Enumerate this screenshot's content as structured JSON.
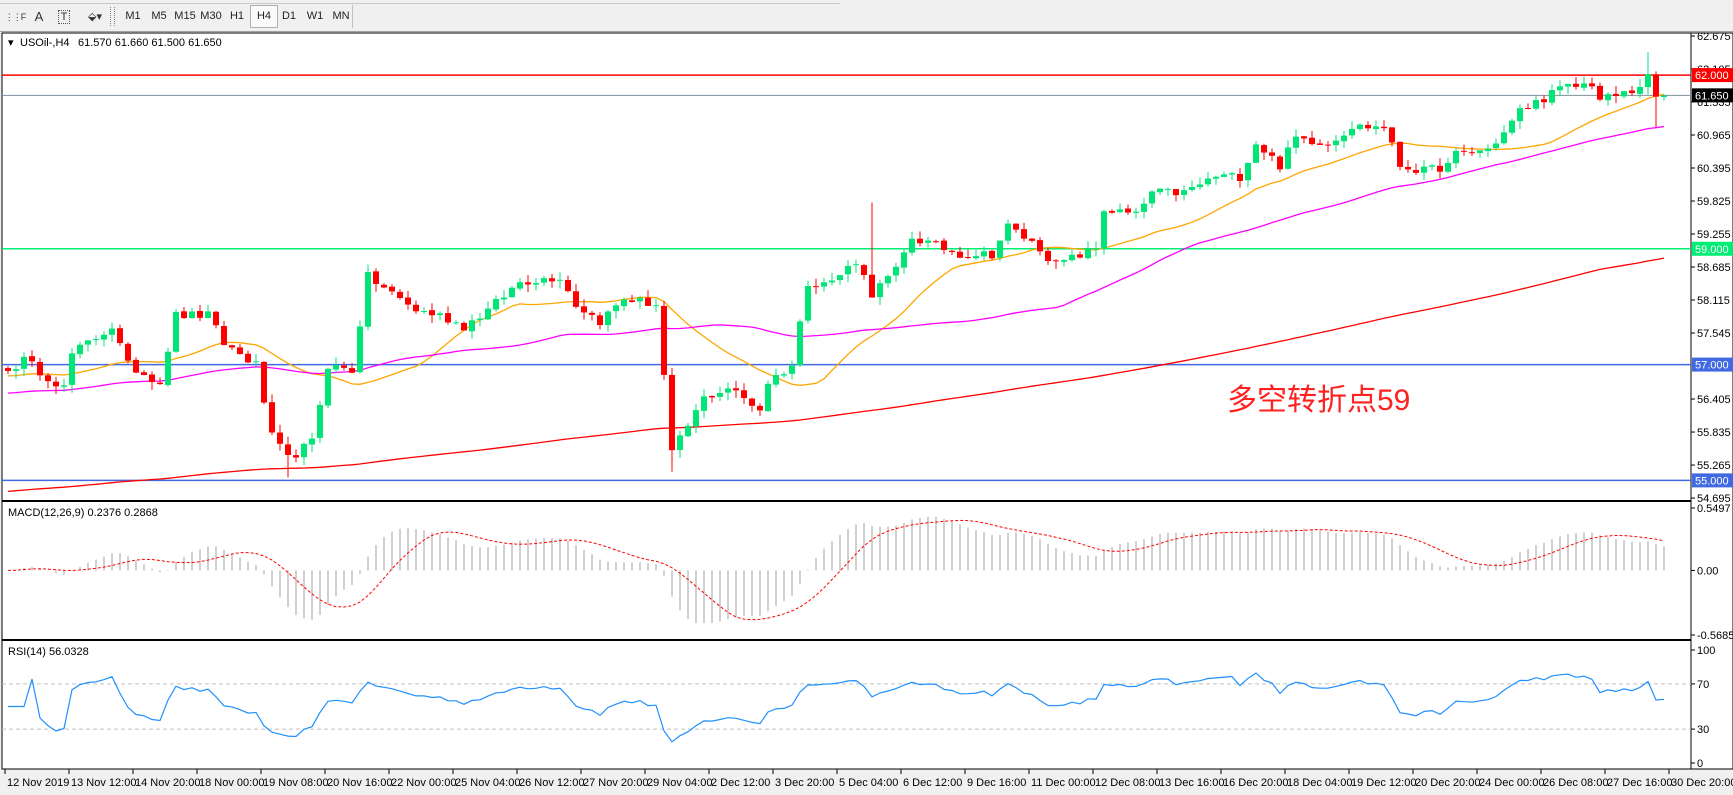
{
  "toolbar": {
    "icons": [
      "period-separator-icon",
      "text-A-icon",
      "text-label-icon",
      "arrows-icon"
    ],
    "timeframes": [
      "M1",
      "M5",
      "M15",
      "M30",
      "H1",
      "H4",
      "D1",
      "W1",
      "MN"
    ],
    "active_timeframe": "H4"
  },
  "main": {
    "symbol_label": "USOil-,H4",
    "ohlc": "61.570 61.660 61.500 61.650",
    "annotation": "多空转折点59",
    "annotation_color": "#ff2020",
    "price_ticks": [
      "62.675",
      "62.105",
      "61.535",
      "60.965",
      "60.395",
      "59.825",
      "59.255",
      "58.685",
      "58.115",
      "57.545",
      "56.405",
      "55.835",
      "55.265",
      "54.695"
    ],
    "hlines": [
      {
        "price": 62.0,
        "label": "62.000",
        "color": "#ff0000"
      },
      {
        "price": 61.65,
        "label": "61.650",
        "color": "#000000",
        "line_color": "#8090a0"
      },
      {
        "price": 59.0,
        "label": "59.000",
        "color": "#00ee76"
      },
      {
        "price": 57.0,
        "label": "57.000",
        "color": "#4169e1"
      },
      {
        "price": 55.0,
        "label": "55.000",
        "color": "#4169e1"
      }
    ]
  },
  "macd": {
    "label": "MACD(12,26,9) 0.2376 0.2868",
    "ticks": [
      "0.5497",
      "0.00",
      "-0.5685"
    ]
  },
  "rsi": {
    "label": "RSI(14) 56.0328",
    "ticks": [
      "100",
      "70",
      "30",
      "0"
    ]
  },
  "time_axis": [
    "12 Nov 2019",
    "13 Nov 12:00",
    "14 Nov 20:00",
    "18 Nov 00:00",
    "19 Nov 08:00",
    "20 Nov 16:00",
    "22 Nov 00:00",
    "25 Nov 04:00",
    "26 Nov 12:00",
    "27 Nov 20:00",
    "29 Nov 04:00",
    "2 Dec 12:00",
    "3 Dec 20:00",
    "5 Dec 04:00",
    "6 Dec 12:00",
    "9 Dec 16:00",
    "11 Dec 00:00",
    "12 Dec 08:00",
    "13 Dec 16:00",
    "16 Dec 20:00",
    "18 Dec 04:00",
    "19 Dec 12:00",
    "20 Dec 20:00",
    "24 Dec 00:00",
    "26 Dec 08:00",
    "27 Dec 16:00",
    "30 Dec 20:00"
  ],
  "chart_data": {
    "type": "candlestick",
    "symbol": "USOil-",
    "timeframe": "H4",
    "ylim": [
      54.695,
      62.675
    ],
    "bars": 208,
    "close_path": [
      [
        0,
        56.89
      ],
      [
        2,
        57.08
      ],
      [
        7,
        56.6
      ],
      [
        8,
        57.18
      ],
      [
        13,
        57.66
      ],
      [
        15,
        56.99
      ],
      [
        19,
        56.7
      ],
      [
        21,
        57.85
      ],
      [
        25,
        57.85
      ],
      [
        27,
        57.37
      ],
      [
        31,
        56.99
      ],
      [
        33,
        55.75
      ],
      [
        35,
        55.37
      ],
      [
        38,
        55.66
      ],
      [
        40,
        56.99
      ],
      [
        43,
        56.9
      ],
      [
        45,
        58.52
      ],
      [
        48,
        58.23
      ],
      [
        51,
        57.94
      ],
      [
        54,
        57.85
      ],
      [
        57,
        57.66
      ],
      [
        60,
        57.94
      ],
      [
        64,
        58.43
      ],
      [
        69,
        58.52
      ],
      [
        71,
        58.04
      ],
      [
        74,
        57.75
      ],
      [
        77,
        58.14
      ],
      [
        81,
        58.04
      ],
      [
        82,
        56.8
      ],
      [
        83,
        55.46
      ],
      [
        87,
        56.42
      ],
      [
        90,
        56.6
      ],
      [
        94,
        56.23
      ],
      [
        95,
        56.7
      ],
      [
        98,
        56.99
      ],
      [
        100,
        58.43
      ],
      [
        103,
        58.43
      ],
      [
        106,
        58.8
      ],
      [
        108,
        58.23
      ],
      [
        111,
        58.62
      ],
      [
        113,
        59.2
      ],
      [
        115,
        59.1
      ],
      [
        119,
        58.91
      ],
      [
        123,
        58.91
      ],
      [
        125,
        59.39
      ],
      [
        129,
        59.01
      ],
      [
        131,
        58.72
      ],
      [
        136,
        59.01
      ],
      [
        137,
        59.68
      ],
      [
        141,
        59.58
      ],
      [
        143,
        59.97
      ],
      [
        147,
        59.97
      ],
      [
        151,
        60.25
      ],
      [
        154,
        60.25
      ],
      [
        156,
        60.83
      ],
      [
        159,
        60.44
      ],
      [
        161,
        60.92
      ],
      [
        165,
        60.83
      ],
      [
        168,
        61.11
      ],
      [
        172,
        61.11
      ],
      [
        174,
        60.44
      ],
      [
        177,
        60.34
      ],
      [
        180,
        60.44
      ],
      [
        181,
        60.63
      ],
      [
        185,
        60.72
      ],
      [
        187,
        61.0
      ],
      [
        189,
        61.38
      ],
      [
        194,
        61.76
      ],
      [
        198,
        61.86
      ],
      [
        199,
        61.57
      ],
      [
        203,
        61.72
      ],
      [
        205,
        61.95
      ],
      [
        206,
        61.61
      ],
      [
        207,
        61.65
      ]
    ],
    "colors": {
      "bull": "#00e676",
      "bear": "#ff0000",
      "ma_fast": "#ffa500",
      "ma_mid": "#ff00ff",
      "ma_slow": "#ff0000",
      "macd_hist": "#c0c0c0",
      "macd_signal": "#ff0000",
      "rsi": "#1e90ff"
    },
    "macd_range": [
      -0.5685,
      0.5497
    ],
    "rsi_levels": [
      70,
      30
    ]
  }
}
